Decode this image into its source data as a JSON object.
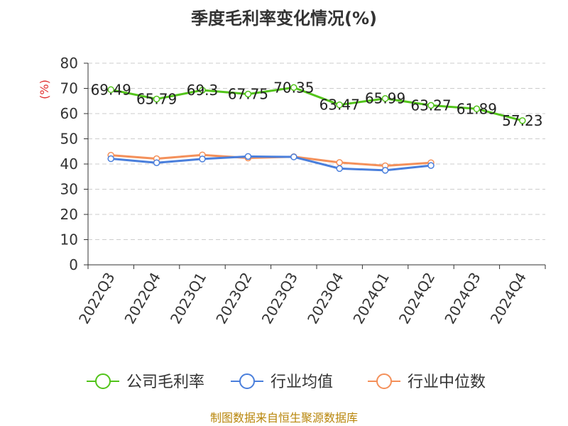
{
  "chart_data": {
    "type": "line",
    "title": "季度毛利率变化情况(%)",
    "ylabel": "(%)",
    "xlabel": "",
    "ylim": [
      0,
      80
    ],
    "yticks": [
      0,
      10,
      20,
      30,
      40,
      50,
      60,
      70,
      80
    ],
    "grid": true,
    "legend_position": "bottom",
    "categories": [
      "2022Q3",
      "2022Q4",
      "2023Q1",
      "2023Q2",
      "2023Q3",
      "2023Q4",
      "2024Q1",
      "2024Q2",
      "2024Q3",
      "2024Q4"
    ],
    "series": [
      {
        "name": "公司毛利率",
        "color": "#52c41a",
        "values": [
          69.49,
          65.79,
          69.3,
          67.75,
          70.35,
          63.47,
          65.99,
          63.27,
          61.89,
          57.23
        ],
        "labels": [
          "69.49",
          "65.79",
          "69.3",
          "67.75",
          "70.35",
          "63.47",
          "65.99",
          "63.27",
          "61.89",
          "57.23"
        ]
      },
      {
        "name": "行业均值",
        "color": "#4a7fdc",
        "values": [
          42.1,
          40.5,
          42.0,
          43.0,
          42.8,
          38.2,
          37.5,
          39.4,
          null,
          null
        ]
      },
      {
        "name": "行业中位数",
        "color": "#f4905a",
        "values": [
          43.5,
          42.1,
          43.6,
          42.4,
          42.9,
          40.6,
          39.3,
          40.5,
          null,
          null
        ]
      }
    ],
    "source": "制图数据来自恒生聚源数据库"
  }
}
